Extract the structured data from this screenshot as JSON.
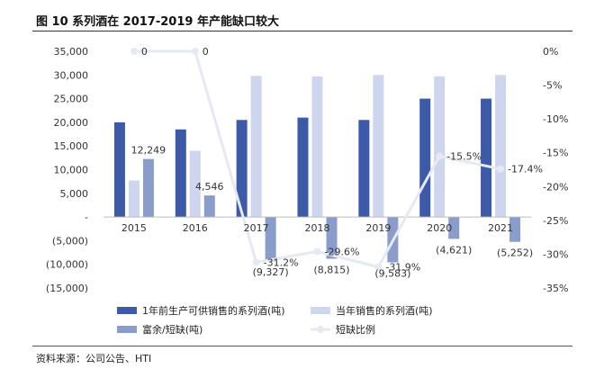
{
  "page": {
    "figure_title": "图 10 系列酒在 2017-2019 年产能缺口较大",
    "source": "资料来源：公司公告、HTI"
  },
  "chart_data": {
    "type": "bar",
    "title": "图 10 系列酒在 2017-2019 年产能缺口较大",
    "categories": [
      "2015",
      "2016",
      "2017",
      "2018",
      "2019",
      "2020",
      "2021"
    ],
    "y_left": {
      "ylim": [
        -15000,
        35000
      ],
      "ticks": [
        35000,
        30000,
        25000,
        20000,
        15000,
        10000,
        5000,
        0,
        -5000,
        -10000,
        -15000
      ],
      "tick_labels": [
        "35,000",
        "30,000",
        "25,000",
        "20,000",
        "15,000",
        "10,000",
        "5,000",
        "-",
        "(5,000)",
        "(10,000)",
        "(15,000)"
      ]
    },
    "y_right": {
      "ylim": [
        -35,
        0
      ],
      "ticks": [
        0,
        -5,
        -10,
        -15,
        -20,
        -25,
        -30,
        -35
      ],
      "tick_labels": [
        "0%",
        "-5%",
        "-10%",
        "-15%",
        "-20%",
        "-25%",
        "-30%",
        "-35%"
      ]
    },
    "series": [
      {
        "name": "1年前生产可供销售的系列酒(吨)",
        "type": "bar",
        "axis": "left",
        "color": "#3d5aa8",
        "values": [
          20000,
          18500,
          20500,
          21000,
          20500,
          25000,
          25000
        ]
      },
      {
        "name": "当年销售的系列酒(吨)",
        "type": "bar",
        "axis": "left",
        "color": "#cdd6ec",
        "values": [
          7700,
          14000,
          29800,
          29700,
          30000,
          29700,
          30000
        ]
      },
      {
        "name": "富余/短缺(吨)",
        "type": "bar",
        "axis": "left",
        "color": "#8a9cc9",
        "values": [
          12249,
          4546,
          -9327,
          -8815,
          -9583,
          -4621,
          -5252
        ],
        "labels": [
          "12,249",
          "4,546",
          "(9,327)",
          "(8,815)",
          "(9,583)",
          "(4,621)",
          "(5,252)"
        ]
      },
      {
        "name": "短缺比例",
        "type": "line",
        "axis": "right",
        "color": "#e6e9f2",
        "values": [
          0,
          0,
          -31.2,
          -29.6,
          -31.9,
          -15.5,
          -17.4
        ],
        "labels": [
          "0",
          "0",
          "-31.2%",
          "-29.6%",
          "-31.9%",
          "-15.5%",
          "-17.4%"
        ]
      }
    ],
    "legend_position": "bottom",
    "grid": false
  }
}
